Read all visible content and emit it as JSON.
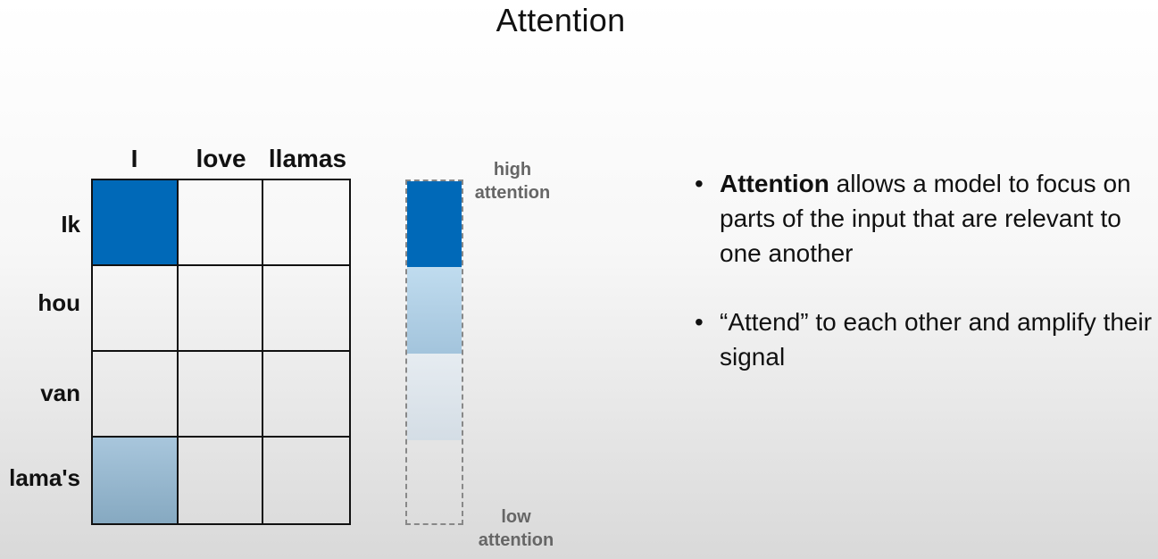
{
  "title": "Attention",
  "matrix": {
    "columns": [
      "I",
      "love",
      "llamas"
    ],
    "rows": [
      "Ik",
      "hou",
      "van",
      "lama's"
    ]
  },
  "scale": {
    "high_line1": "high",
    "high_line2": "attention",
    "low_line1": "low",
    "low_line2": "attention",
    "colors": [
      "#0069b8",
      "#a3c4dc",
      "#d4dde5",
      "#ebebeb"
    ]
  },
  "bullets": [
    {
      "bold": "Attention",
      "text": " allows a model to focus on parts of the input that are relevant to one another"
    },
    {
      "bold": "",
      "text": "“Attend” to each other and amplify their signal"
    }
  ]
}
